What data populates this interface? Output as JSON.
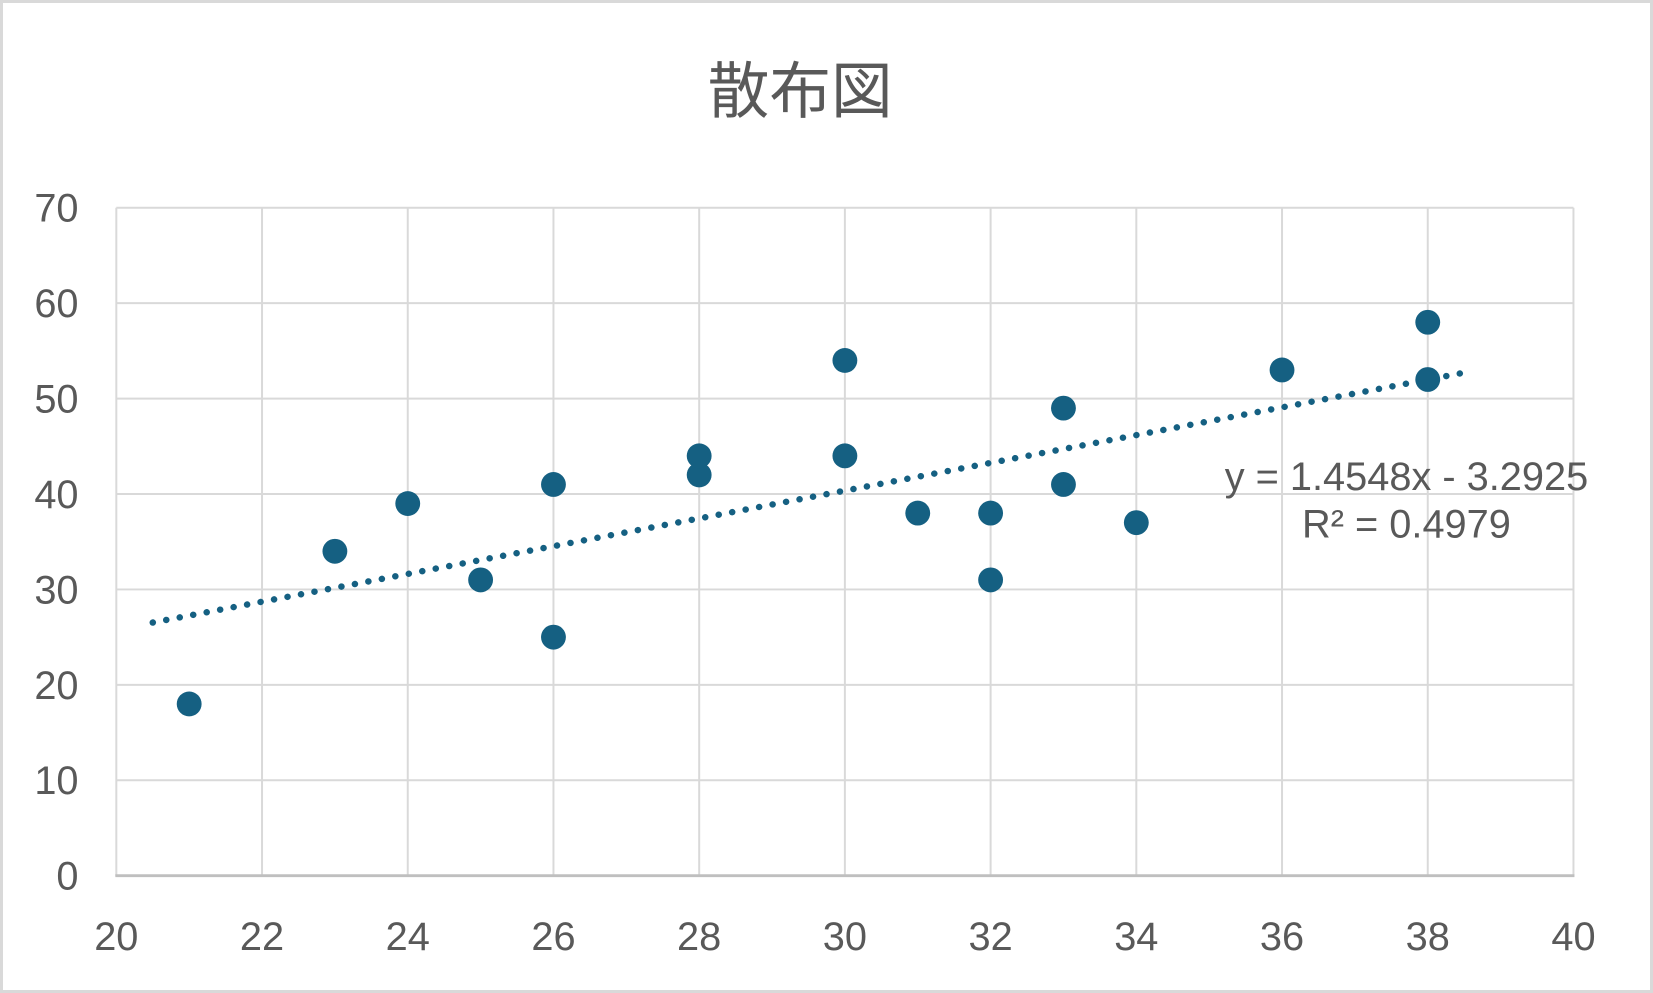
{
  "chart_data": {
    "type": "scatter",
    "title": "散布図",
    "points": [
      [
        21,
        18
      ],
      [
        23,
        34
      ],
      [
        24,
        39
      ],
      [
        25,
        31
      ],
      [
        26,
        25
      ],
      [
        26,
        41
      ],
      [
        28,
        42
      ],
      [
        28,
        44
      ],
      [
        30,
        44
      ],
      [
        30,
        54
      ],
      [
        31,
        38
      ],
      [
        32,
        31
      ],
      [
        32,
        38
      ],
      [
        33,
        41
      ],
      [
        33,
        49
      ],
      [
        34,
        37
      ],
      [
        36,
        53
      ],
      [
        38,
        52
      ],
      [
        38,
        58
      ]
    ],
    "xlim": [
      20,
      40
    ],
    "ylim": [
      0,
      70
    ],
    "x_ticks": [
      20,
      22,
      24,
      26,
      28,
      30,
      32,
      34,
      36,
      38,
      40
    ],
    "y_ticks": [
      0,
      10,
      20,
      30,
      40,
      50,
      60,
      70
    ],
    "grid": true,
    "legend": "none",
    "trendline": {
      "type": "linear",
      "style": "dotted",
      "slope": 1.4548,
      "intercept": -3.2925,
      "x_start": 20.5,
      "x_end": 38.5,
      "equation_label": "y = 1.4548x - 3.2925",
      "r_squared_label": "R² = 0.4979"
    },
    "colors": {
      "marker": "#156082",
      "trendline": "#156082",
      "gridline": "#d9d9d9",
      "axis_line": "#bfbfbf",
      "text": "#595959",
      "title": "#595959",
      "background": "#ffffff",
      "frame_border": "#d9d9d9"
    }
  }
}
